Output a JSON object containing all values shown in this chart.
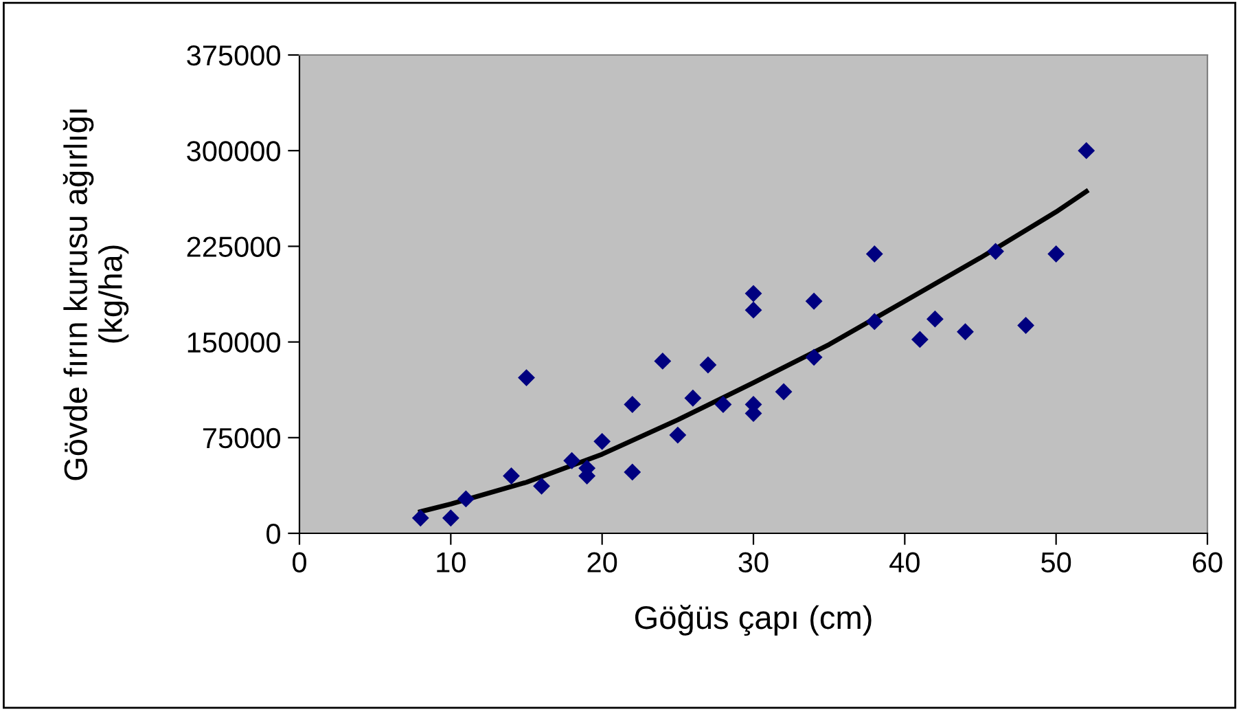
{
  "chart_data": {
    "type": "scatter",
    "xlabel": "Göğüs çapı (cm)",
    "ylabel": "Gövde fırın kurusu ağırlığı\n(kg/ha)",
    "xlim": [
      0,
      60
    ],
    "xticks": [
      0,
      10,
      20,
      30,
      40,
      50,
      60
    ],
    "ylim": [
      0,
      375000
    ],
    "yticks": [
      0,
      75000,
      150000,
      225000,
      300000,
      375000
    ],
    "grid": false,
    "legend": false,
    "marker": "diamond",
    "series": [
      {
        "color": "#000080",
        "x": [
          8,
          10,
          11,
          14,
          15,
          16,
          18,
          19,
          19,
          20,
          22,
          22,
          24,
          25,
          26,
          27,
          28,
          30,
          30,
          30,
          30,
          32,
          34,
          34,
          38,
          38,
          41,
          42,
          44,
          46,
          48,
          50,
          52
        ],
        "values": [
          12000,
          12000,
          27000,
          45000,
          122000,
          37000,
          57000,
          51000,
          45000,
          72000,
          101000,
          48000,
          135000,
          77000,
          106000,
          132000,
          101000,
          188000,
          175000,
          101000,
          94000,
          111000,
          182000,
          138000,
          219000,
          166000,
          152000,
          168000,
          158000,
          221000,
          163000,
          219000,
          300000
        ]
      },
      {
        "type": "line",
        "color": "#000000",
        "line_style": "solid",
        "marker": "none",
        "x": [
          8,
          10,
          15,
          20,
          25,
          30,
          35,
          40,
          45,
          50,
          52
        ],
        "values": [
          17000,
          23000,
          40000,
          62000,
          89000,
          118000,
          148000,
          182000,
          216000,
          252000,
          268000
        ]
      }
    ]
  }
}
